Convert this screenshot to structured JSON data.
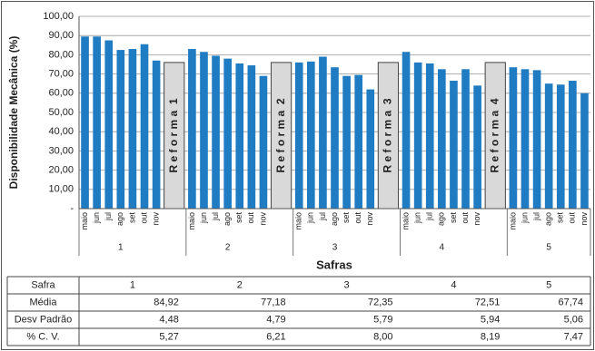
{
  "chart_data": {
    "type": "bar",
    "y_axis_label": "Disponibilidade Mecânica (%)",
    "x_axis_label": "Safras",
    "color": "#1f7cc3",
    "ylim": [
      0,
      100
    ],
    "yticks": [
      {
        "value": 0,
        "label": "-"
      },
      {
        "value": 10,
        "label": "10,00"
      },
      {
        "value": 20,
        "label": "20,00"
      },
      {
        "value": 30,
        "label": "30,00"
      },
      {
        "value": 40,
        "label": "40,00"
      },
      {
        "value": 50,
        "label": "50,00"
      },
      {
        "value": 60,
        "label": "60,00"
      },
      {
        "value": 70,
        "label": "70,00"
      },
      {
        "value": 80,
        "label": "80,00"
      },
      {
        "value": 90,
        "label": "90,00"
      },
      {
        "value": 100,
        "label": "100,00"
      }
    ],
    "grid": true,
    "groups": [
      {
        "name": "1",
        "categories": [
          "maio",
          "jun",
          "jul",
          "ago",
          "set",
          "out",
          "nov"
        ],
        "values": [
          89.5,
          89.5,
          87.5,
          82.5,
          83,
          85.5,
          77
        ]
      },
      {
        "name": "2",
        "categories": [
          "maio",
          "jun",
          "jul",
          "ago",
          "set",
          "out",
          "nov"
        ],
        "values": [
          83,
          81.5,
          79.5,
          78,
          75.5,
          74.5,
          69
        ]
      },
      {
        "name": "3",
        "categories": [
          "maio",
          "jun",
          "jul",
          "ago",
          "set",
          "out",
          "nov"
        ],
        "values": [
          76,
          76.5,
          79,
          73.5,
          69,
          69.5,
          62
        ]
      },
      {
        "name": "4",
        "categories": [
          "maio",
          "jun",
          "jul",
          "ago",
          "set",
          "out",
          "nov"
        ],
        "values": [
          81.5,
          76,
          75.5,
          72.5,
          66.5,
          72.5,
          64
        ]
      },
      {
        "name": "5",
        "categories": [
          "maio",
          "jun",
          "jul",
          "ago",
          "set",
          "out",
          "nov"
        ],
        "values": [
          73.5,
          72.5,
          72,
          65,
          64.5,
          66.5,
          60
        ]
      }
    ],
    "annotations": [
      "R e f o r m a  1",
      "R e f o r m a  2",
      "R e f o r m a  3",
      "R e f o r m a  4"
    ]
  },
  "table": {
    "header": [
      "Safra",
      "1",
      "2",
      "3",
      "4",
      "5"
    ],
    "rows": [
      [
        "Média",
        "84,92",
        "77,18",
        "72,35",
        "72,51",
        "67,74"
      ],
      [
        "Desv Padrão",
        "4,48",
        "4,79",
        "5,79",
        "5,94",
        "5,06"
      ],
      [
        "% C. V.",
        "5,27",
        "6,21",
        "8,00",
        "8,19",
        "7,47"
      ]
    ]
  }
}
